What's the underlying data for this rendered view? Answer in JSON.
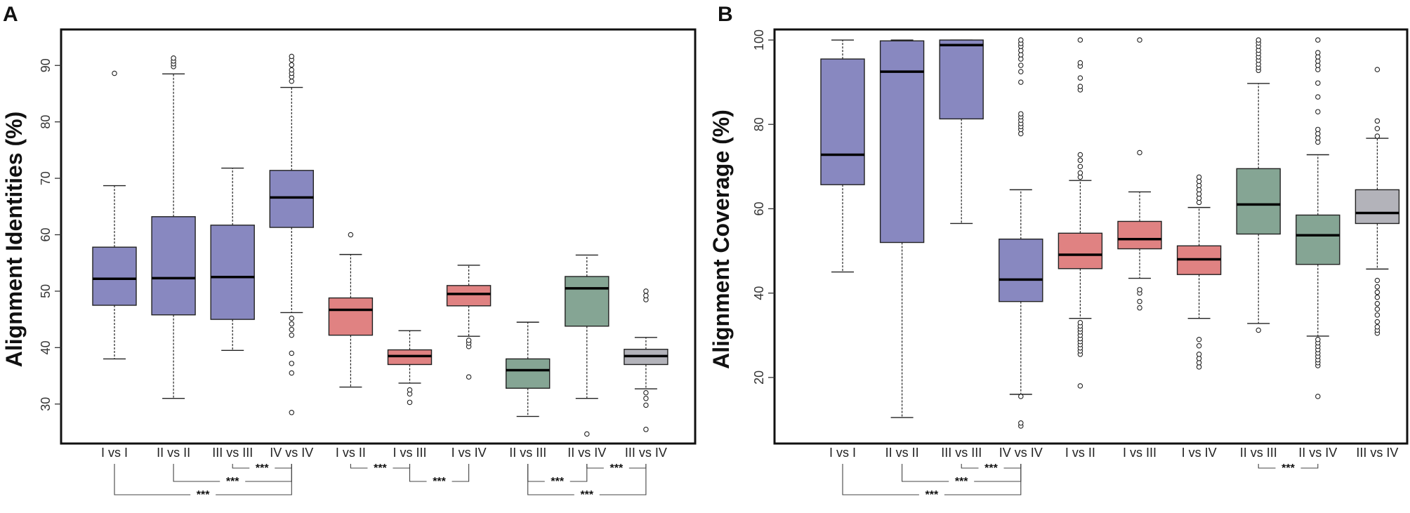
{
  "chart_data": [
    {
      "type": "boxplot",
      "panel": "A",
      "title": "",
      "xlabel": "",
      "ylabel": "Alignment Identities (%)",
      "ylim": [
        23.5,
        96
      ],
      "yticks": [
        30,
        40,
        50,
        60,
        70,
        80,
        90
      ],
      "grid": false,
      "colors": {
        "purple": "#8888c0",
        "red": "#e08282",
        "green": "#85a594",
        "gray": "#b3b3ba"
      },
      "categories": [
        "I vs I",
        "II vs II",
        "III vs III",
        "IV vs IV",
        "I vs II",
        "I vs III",
        "I vs IV",
        "II vs III",
        "II vs IV",
        "III vs IV"
      ],
      "boxes": [
        {
          "label": "I vs I",
          "color": "purple",
          "whislo": 38,
          "q1": 47.5,
          "med": 52.2,
          "q3": 57.8,
          "whishi": 68.7,
          "fliers": [
            88.6
          ]
        },
        {
          "label": "II vs II",
          "color": "purple",
          "whislo": 31,
          "q1": 45.8,
          "med": 52.3,
          "q3": 63.2,
          "whishi": 88.5,
          "fliers": [
            89.8,
            90.3,
            90.8,
            91.3
          ]
        },
        {
          "label": "III vs III",
          "color": "purple",
          "whislo": 39.5,
          "q1": 45,
          "med": 52.5,
          "q3": 61.7,
          "whishi": 71.8,
          "fliers": []
        },
        {
          "label": "IV vs IV",
          "color": "purple",
          "whislo": 46.2,
          "q1": 61.3,
          "med": 66.6,
          "q3": 71.4,
          "whishi": 86.1,
          "fliers": [
            28.5,
            35.5,
            37.2,
            39,
            42.2,
            43.2,
            44.2,
            45.2,
            87.2,
            88,
            88.6,
            89.2,
            90.1,
            91,
            91.6
          ]
        },
        {
          "label": "I vs II",
          "color": "red",
          "whislo": 33,
          "q1": 42.2,
          "med": 46.7,
          "q3": 48.8,
          "whishi": 56.5,
          "fliers": [
            60
          ]
        },
        {
          "label": "I vs III",
          "color": "red",
          "whislo": 33.7,
          "q1": 37,
          "med": 38.5,
          "q3": 39.6,
          "whishi": 43,
          "fliers": [
            30.3,
            31.8,
            32.5
          ]
        },
        {
          "label": "I vs IV",
          "color": "red",
          "whislo": 42,
          "q1": 47.4,
          "med": 49.5,
          "q3": 51,
          "whishi": 54.6,
          "fliers": [
            34.8,
            40.2,
            40.8,
            41.3
          ]
        },
        {
          "label": "II vs III",
          "color": "green",
          "whislo": 27.8,
          "q1": 32.8,
          "med": 36,
          "q3": 38,
          "whishi": 44.5,
          "fliers": []
        },
        {
          "label": "II vs IV",
          "color": "green",
          "whislo": 31,
          "q1": 43.8,
          "med": 50.5,
          "q3": 52.6,
          "whishi": 56.4,
          "fliers": [
            24.7
          ]
        },
        {
          "label": "III vs IV",
          "color": "gray",
          "whislo": 32.7,
          "q1": 37,
          "med": 38.5,
          "q3": 39.7,
          "whishi": 41.8,
          "fliers": [
            25.5,
            29.8,
            31,
            32,
            48.5,
            49.2,
            50
          ]
        }
      ],
      "significance": [
        {
          "from": "III vs III",
          "to": "IV vs IV",
          "label": "***"
        },
        {
          "from": "II vs II",
          "to": "IV vs IV",
          "label": "***"
        },
        {
          "from": "I vs I",
          "to": "IV vs IV",
          "label": "***"
        },
        {
          "from": "I vs II",
          "to": "I vs III",
          "label": "***"
        },
        {
          "from": "I vs III",
          "to": "I vs IV",
          "label": "***"
        },
        {
          "from": "II vs IV",
          "to": "III vs IV",
          "label": "***"
        },
        {
          "from": "II vs III",
          "to": "II vs IV",
          "label": "***"
        },
        {
          "from": "II vs III",
          "to": "III vs IV",
          "label": "***"
        }
      ]
    },
    {
      "type": "boxplot",
      "panel": "B",
      "title": "",
      "xlabel": "",
      "ylabel": "Alignment  Coverage (%)",
      "ylim": [
        5,
        102
      ],
      "yticks": [
        20,
        40,
        60,
        80,
        100
      ],
      "grid": false,
      "colors": {
        "purple": "#8888c0",
        "red": "#e08282",
        "green": "#85a594",
        "gray": "#b3b3ba"
      },
      "categories": [
        "I vs I",
        "II vs II",
        "III vs III",
        "IV vs IV",
        "I vs II",
        "I vs III",
        "I vs IV",
        "II vs III",
        "II vs IV",
        "III vs IV"
      ],
      "boxes": [
        {
          "label": "I vs I",
          "color": "purple",
          "whislo": 45,
          "q1": 65.7,
          "med": 72.8,
          "q3": 95.5,
          "whishi": 100,
          "fliers": []
        },
        {
          "label": "II vs II",
          "color": "purple",
          "whislo": 10.5,
          "q1": 52,
          "med": 92.5,
          "q3": 99.8,
          "whishi": 100,
          "fliers": []
        },
        {
          "label": "III vs III",
          "color": "purple",
          "whislo": 56.5,
          "q1": 81.3,
          "med": 98.8,
          "q3": 100,
          "whishi": 100,
          "fliers": []
        },
        {
          "label": "IV vs IV",
          "color": "purple",
          "whislo": 16,
          "q1": 38,
          "med": 43.2,
          "q3": 52.8,
          "whishi": 64.5,
          "fliers": [
            8.5,
            9.2,
            15.5,
            77.8,
            78.8,
            79.5,
            80.2,
            81,
            81.8,
            82.5,
            90,
            92.5,
            94,
            95.5,
            96.5,
            97.5,
            98.5,
            99.2,
            100
          ]
        },
        {
          "label": "I vs II",
          "color": "red",
          "whislo": 34,
          "q1": 45.8,
          "med": 49.1,
          "q3": 54.2,
          "whishi": 66.7,
          "fliers": [
            18,
            25.5,
            26.3,
            27,
            27.8,
            28.5,
            29.2,
            30,
            30.8,
            31.5,
            32.2,
            33,
            67.5,
            68.5,
            70,
            71.5,
            72.8,
            88.2,
            89,
            91,
            93.8,
            94.6,
            100
          ]
        },
        {
          "label": "I vs III",
          "color": "red",
          "whislo": 43.5,
          "q1": 50.5,
          "med": 52.8,
          "q3": 57,
          "whishi": 64,
          "fliers": [
            36.5,
            38,
            40,
            40.8,
            73.3,
            100
          ]
        },
        {
          "label": "I vs IV",
          "color": "red",
          "whislo": 34,
          "q1": 44.4,
          "med": 48,
          "q3": 51.2,
          "whishi": 60.3,
          "fliers": [
            22.5,
            23.5,
            24.5,
            25.5,
            27.5,
            29,
            61.5,
            62.5,
            63.5,
            64.5,
            65.5,
            66.5,
            67.5
          ]
        },
        {
          "label": "II vs III",
          "color": "green",
          "whislo": 32.8,
          "q1": 54,
          "med": 61,
          "q3": 69.5,
          "whishi": 89.7,
          "fliers": [
            31.2,
            92.8,
            93.5,
            94.3,
            95.2,
            96,
            96.8,
            97.6,
            98.5,
            99.3,
            100
          ]
        },
        {
          "label": "II vs IV",
          "color": "green",
          "whislo": 29.8,
          "q1": 46.8,
          "med": 53.7,
          "q3": 58.5,
          "whishi": 72.8,
          "fliers": [
            15.5,
            22.8,
            23.5,
            24.2,
            25,
            25.8,
            26.6,
            27.4,
            28.2,
            29,
            75.8,
            76.8,
            77.8,
            78.8,
            83,
            86.5,
            89.8,
            93,
            94,
            95,
            96,
            97,
            100
          ]
        },
        {
          "label": "III vs IV",
          "color": "gray",
          "whislo": 45.7,
          "q1": 56.5,
          "med": 59,
          "q3": 64.5,
          "whishi": 76.7,
          "fliers": [
            30.5,
            31.2,
            32,
            33.2,
            34.8,
            36.2,
            37.5,
            39,
            40.2,
            41.5,
            43,
            77.2,
            79,
            80.8,
            93
          ]
        }
      ],
      "significance": [
        {
          "from": "III vs III",
          "to": "IV vs IV",
          "label": "***"
        },
        {
          "from": "II vs II",
          "to": "IV vs IV",
          "label": "***"
        },
        {
          "from": "I vs I",
          "to": "IV vs IV",
          "label": "***"
        },
        {
          "from": "II vs III",
          "to": "II vs IV",
          "label": "***"
        }
      ]
    }
  ]
}
